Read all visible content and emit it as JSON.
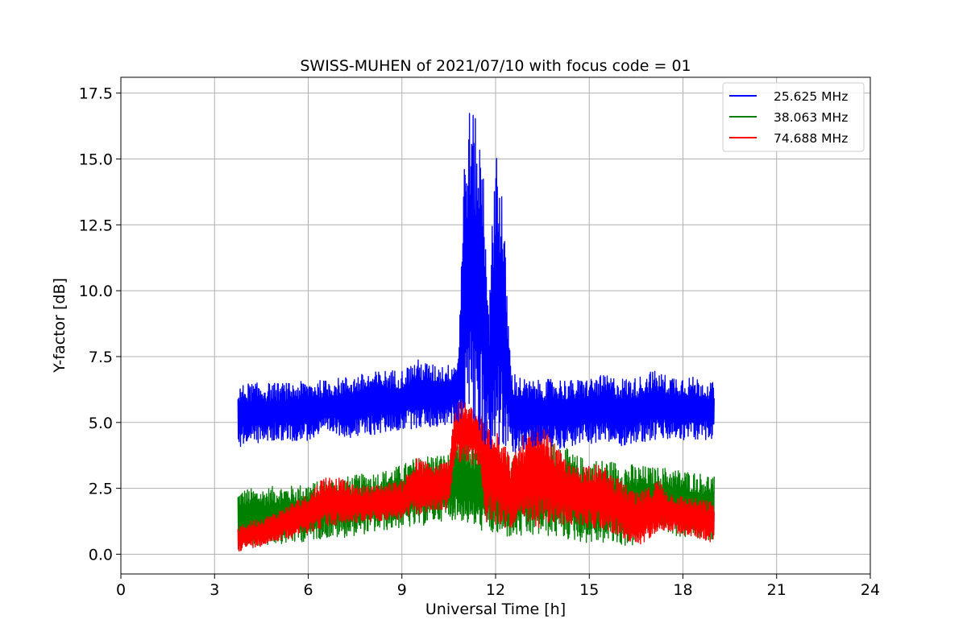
{
  "chart_data": {
    "type": "line",
    "title": "SWISS-MUHEN of 2021/07/10 with focus code = 01",
    "xlabel": "Universal Time [h]",
    "ylabel": "Y-factor [dB]",
    "xlim": [
      0,
      24
    ],
    "ylim": [
      -0.75,
      18.1
    ],
    "xticks": [
      0,
      3,
      6,
      9,
      12,
      15,
      18,
      21,
      24
    ],
    "xtick_labels": [
      "0",
      "3",
      "6",
      "9",
      "12",
      "15",
      "18",
      "21",
      "24"
    ],
    "yticks": [
      0.0,
      2.5,
      5.0,
      7.5,
      10.0,
      12.5,
      15.0,
      17.5
    ],
    "ytick_labels": [
      "0.0",
      "2.5",
      "5.0",
      "7.5",
      "10.0",
      "12.5",
      "15.0",
      "17.5"
    ],
    "grid": true,
    "legend_position": "top-right",
    "colors": {
      "blue": "#0000ff",
      "green": "#008000",
      "red": "#ff0000",
      "grid": "#b0b0b0"
    },
    "series": [
      {
        "name": "25.625 MHz",
        "color": "#0000ff",
        "x": [
          3.75,
          4.0,
          4.5,
          5.0,
          5.5,
          6.0,
          6.5,
          7.0,
          7.5,
          8.0,
          8.5,
          9.0,
          9.5,
          10.0,
          10.5,
          10.8,
          11.0,
          11.2,
          11.4,
          11.6,
          11.8,
          12.0,
          12.2,
          12.5,
          13.0,
          13.5,
          14.0,
          14.5,
          15.0,
          15.5,
          16.0,
          16.5,
          17.0,
          17.5,
          18.0,
          18.5,
          19.0
        ],
        "low": [
          4.0,
          4.2,
          4.2,
          4.3,
          4.3,
          4.3,
          4.5,
          4.5,
          4.4,
          4.5,
          4.6,
          4.7,
          4.8,
          4.8,
          4.9,
          5.0,
          5.2,
          5.0,
          4.5,
          4.0,
          4.0,
          4.0,
          3.8,
          3.8,
          4.0,
          4.2,
          4.0,
          4.1,
          4.2,
          4.2,
          4.1,
          4.2,
          4.3,
          4.3,
          4.3,
          4.3,
          4.4
        ],
        "high": [
          6.3,
          6.5,
          6.5,
          6.5,
          6.5,
          6.6,
          6.6,
          6.7,
          6.8,
          6.9,
          7.0,
          7.0,
          7.4,
          7.2,
          7.2,
          7.5,
          15.3,
          17.3,
          16.3,
          15.3,
          9.5,
          16.2,
          14.1,
          7.0,
          6.6,
          6.6,
          6.7,
          6.6,
          6.7,
          6.8,
          6.7,
          6.7,
          7.0,
          6.8,
          6.8,
          6.7,
          6.5
        ]
      },
      {
        "name": "38.063 MHz",
        "color": "#008000",
        "x": [
          3.75,
          4.0,
          4.5,
          5.0,
          5.5,
          6.0,
          6.5,
          7.0,
          7.5,
          8.0,
          8.5,
          9.0,
          9.5,
          10.0,
          10.5,
          10.8,
          11.0,
          11.5,
          12.0,
          12.5,
          13.0,
          13.5,
          14.0,
          14.5,
          15.0,
          15.5,
          16.0,
          16.5,
          17.0,
          17.5,
          18.0,
          18.5,
          19.0
        ],
        "low": [
          0.3,
          0.3,
          0.3,
          0.4,
          0.4,
          0.5,
          0.6,
          0.6,
          0.7,
          0.8,
          0.9,
          1.0,
          1.0,
          1.2,
          1.3,
          1.3,
          1.2,
          0.9,
          0.7,
          0.6,
          0.6,
          0.7,
          0.6,
          0.5,
          0.4,
          0.4,
          0.3,
          0.3,
          1.1,
          0.8,
          0.6,
          0.6,
          0.5
        ],
        "high": [
          2.4,
          2.5,
          2.5,
          2.6,
          2.6,
          2.7,
          2.8,
          2.9,
          3.0,
          3.1,
          3.2,
          3.4,
          3.7,
          3.8,
          3.8,
          4.2,
          4.3,
          4.0,
          3.8,
          3.8,
          3.9,
          4.1,
          4.3,
          3.8,
          3.6,
          3.6,
          3.5,
          3.4,
          3.3,
          3.3,
          3.2,
          3.1,
          3.0
        ]
      },
      {
        "name": "74.688 MHz",
        "color": "#ff0000",
        "x": [
          3.75,
          4.0,
          4.5,
          5.0,
          5.5,
          6.0,
          6.5,
          7.0,
          7.5,
          8.0,
          8.5,
          9.0,
          9.5,
          10.0,
          10.5,
          10.7,
          11.0,
          11.5,
          11.7,
          12.0,
          12.5,
          13.0,
          13.5,
          14.0,
          14.5,
          15.0,
          15.5,
          16.0,
          16.5,
          17.0,
          17.2,
          17.5,
          18.0,
          18.5,
          19.0
        ],
        "low": [
          0.1,
          0.2,
          0.3,
          0.5,
          0.6,
          0.8,
          1.0,
          1.1,
          1.2,
          1.2,
          1.3,
          1.3,
          1.5,
          1.6,
          1.7,
          3.5,
          3.5,
          3.3,
          1.0,
          1.0,
          1.0,
          1.0,
          1.0,
          1.1,
          1.1,
          1.0,
          0.9,
          0.7,
          0.1,
          0.7,
          0.9,
          0.9,
          0.7,
          0.6,
          0.4
        ],
        "high": [
          1.0,
          1.2,
          1.4,
          1.6,
          2.0,
          2.3,
          3.0,
          2.9,
          2.6,
          2.6,
          2.7,
          2.8,
          3.7,
          3.4,
          3.6,
          6.0,
          5.8,
          5.4,
          5.2,
          5.3,
          3.6,
          4.8,
          5.2,
          4.0,
          3.3,
          3.5,
          3.3,
          2.8,
          2.3,
          2.6,
          2.9,
          2.4,
          2.2,
          2.1,
          2.0
        ]
      }
    ]
  }
}
